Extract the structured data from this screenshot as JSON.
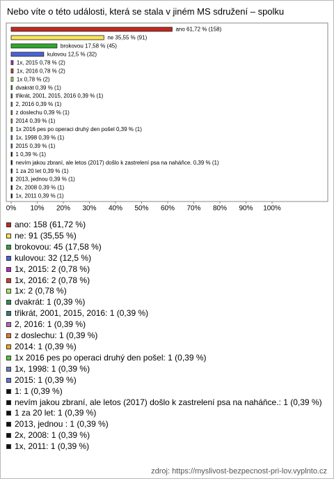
{
  "chart_data": {
    "type": "bar",
    "orientation": "horizontal",
    "title": "Nebo víte o této události, která se stala v jiném MS sdružení – spolku",
    "values": [
      61.72,
      35.55,
      17.58,
      12.5,
      0.78,
      0.78,
      0.78,
      0.39,
      0.39,
      0.39,
      0.39,
      0.39,
      0.39,
      0.39,
      0.39,
      0.39,
      0.39,
      0.39,
      0.39,
      0.39,
      0.39
    ],
    "value_labels": [
      "ano 61,72 % (158)",
      "ne 35,55 % (91)",
      "brokovou 17,58 % (45)",
      "kulovou 12,5 % (32)",
      "1x, 2015 0,78 % (2)",
      "1x, 2016 0,78 % (2)",
      "1x 0,78 % (2)",
      "dvakrát 0,39 % (1)",
      "třikrát, 2001, 2015, 2016 0,39 % (1)",
      "2, 2016 0,39 % (1)",
      "z doslechu 0,39 % (1)",
      "2014 0,39 % (1)",
      "1x 2016 pes po operaci druhý den pošel 0,39 % (1)",
      "1x, 1998 0,39 % (1)",
      "2015 0,39 % (1)",
      "1 0,39 % (1)",
      "nevím jakou zbraní, ale letos (2017) došlo k zastrelení psa na naháňce. 0,39 % (1)",
      "1 za 20 let 0,39 % (1)",
      "2013, jednou  0,39 % (1)",
      "2x, 2008 0,39 % (1)",
      "1x, 2011 0,39 % (1)"
    ],
    "legend_labels": [
      "ano: 158 (61,72 %)",
      "ne: 91 (35,55 %)",
      "brokovou: 45 (17,58 %)",
      "kulovou: 32 (12,5 %)",
      "1x, 2015: 2 (0,78 %)",
      "1x, 2016: 2 (0,78 %)",
      "1x: 2 (0,78 %)",
      "dvakrát: 1 (0,39 %)",
      "třikrát, 2001, 2015, 2016: 1 (0,39 %)",
      "2, 2016: 1 (0,39 %)",
      "z doslechu: 1 (0,39 %)",
      "2014: 1 (0,39 %)",
      "1x 2016 pes po operaci druhý den pošel: 1 (0,39 %)",
      "1x, 1998: 1 (0,39 %)",
      "2015: 1 (0,39 %)",
      "1: 1 (0,39 %)",
      "nevím jakou zbraní, ale letos (2017) došlo k zastrelení psa na naháňce.: 1 (0,39 %)",
      "1 za 20 let: 1 (0,39 %)",
      "2013, jednou : 1 (0,39 %)",
      "2x, 2008: 1 (0,39 %)",
      "1x, 2011: 1 (0,39 %)"
    ],
    "colors": [
      "#c0281e",
      "#f7e45a",
      "#2ea82e",
      "#4a63d8",
      "#b02ec8",
      "#d2401e",
      "#a8e85a",
      "#2e8a5a",
      "#3a7a80",
      "#b06ab8",
      "#e0782e",
      "#f0a820",
      "#4ac83a",
      "#6a80c0",
      "#5a7ad8",
      "#111111",
      "#111111",
      "#111111",
      "#111111",
      "#111111",
      "#111111"
    ],
    "xlim": [
      0,
      100
    ],
    "xticks": [
      {
        "value": 0,
        "label": "0%"
      },
      {
        "value": 10,
        "label": "10%"
      },
      {
        "value": 20,
        "label": "20%"
      },
      {
        "value": 30,
        "label": "30%"
      },
      {
        "value": 40,
        "label": "40%"
      },
      {
        "value": 50,
        "label": "50%"
      },
      {
        "value": 60,
        "label": "60%"
      },
      {
        "value": 70,
        "label": "70%"
      },
      {
        "value": 80,
        "label": "80%"
      },
      {
        "value": 90,
        "label": "90%"
      },
      {
        "value": 100,
        "label": "100%"
      }
    ],
    "grid": false,
    "source": "zdroj: https://myslivost-bezpecnost-pri-lov.vyplnto.cz"
  }
}
